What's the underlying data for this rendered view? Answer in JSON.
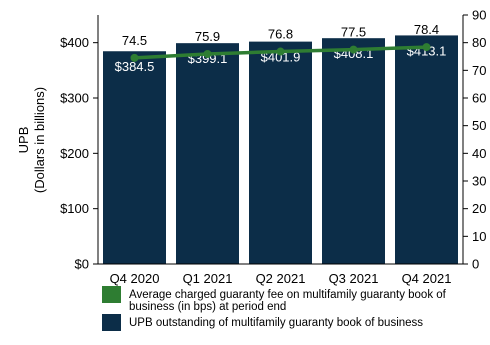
{
  "chart_data": {
    "type": "bar",
    "categories": [
      "Q4 2020",
      "Q1 2021",
      "Q2 2021",
      "Q3 2021",
      "Q4 2021"
    ],
    "y_left": {
      "label_line1": "UPB",
      "label_line2": "(Dollars in billions)",
      "ylim": [
        0,
        450
      ],
      "ticks": [
        0,
        100,
        200,
        300,
        400
      ],
      "tick_labels": [
        "$0",
        "$100",
        "$200",
        "$300",
        "$400"
      ]
    },
    "y_right": {
      "ylim": [
        0,
        90
      ],
      "ticks": [
        0,
        10,
        20,
        30,
        40,
        50,
        60,
        70,
        80,
        90
      ],
      "tick_labels": [
        "0",
        "10",
        "20",
        "30",
        "40",
        "50",
        "60",
        "70",
        "80",
        "90"
      ]
    },
    "series": [
      {
        "type": "bar",
        "axis": "left",
        "values": [
          384.5,
          399.1,
          401.9,
          408.1,
          413.1
        ],
        "labels": [
          "$384.5",
          "$399.1",
          "$401.9",
          "$408.1",
          "$413.1"
        ],
        "color": "#0c2d48"
      },
      {
        "type": "line",
        "axis": "right",
        "values": [
          74.5,
          75.9,
          76.8,
          77.5,
          78.4
        ],
        "labels": [
          "74.5",
          "75.9",
          "76.8",
          "77.5",
          "78.4"
        ],
        "color": "#2e7d32"
      }
    ],
    "legend": {
      "placement": "bottom",
      "entries": [
        {
          "line1": "Average charged guaranty fee on multifamily guaranty book of",
          "line2": "business (in bps) at period end",
          "color": "#2e7d32"
        },
        {
          "line1": "UPB outstanding of multifamily guaranty book of business",
          "line2": "",
          "color": "#0c2d48"
        }
      ]
    },
    "grid": false
  }
}
